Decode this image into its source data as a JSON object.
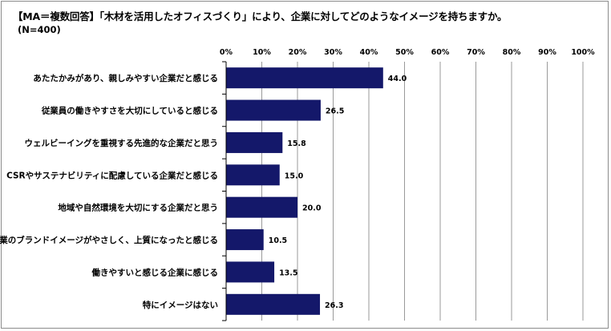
{
  "header": {
    "title": "【MA＝複数回答】「木材を活用したオフィスづくり」により、企業に対してどのようなイメージを持ちますか。",
    "sample": "(N=400)"
  },
  "chart_data": {
    "type": "bar",
    "orientation": "horizontal",
    "title": "【MA＝複数回答】「木材を活用したオフィスづくり」により、企業に対してどのようなイメージを持ちますか。",
    "subtitle": "(N=400)",
    "categories": [
      "あたたかみがあり、親しみやすい企業だと感じる",
      "従業員の働きやすさを大切にしていると感じる",
      "ウェルビーイングを重視する先進的な企業だと思う",
      "CSRやサステナビリティに配慮している企業だと感じる",
      "地域や自然環境を大切にする企業だと思う",
      "企業のブランドイメージがやさしく、上質になったと感じる",
      "働きやすいと感じる企業に感じる",
      "特にイメージはない"
    ],
    "values": [
      44.0,
      26.5,
      15.8,
      15.0,
      20.0,
      10.5,
      13.5,
      26.3
    ],
    "value_labels": [
      "44.0",
      "26.5",
      "15.8",
      "15.0",
      "20.0",
      "10.5",
      "13.5",
      "26.3"
    ],
    "xlim": [
      0,
      100
    ],
    "xticks": [
      "0%",
      "10%",
      "20%",
      "30%",
      "40%",
      "50%",
      "60%",
      "70%",
      "80%",
      "90%",
      "100%"
    ],
    "xlabel": "",
    "ylabel": "",
    "grid": true,
    "bar_color": "#14186a",
    "grid_color": "#9a9a9a"
  }
}
